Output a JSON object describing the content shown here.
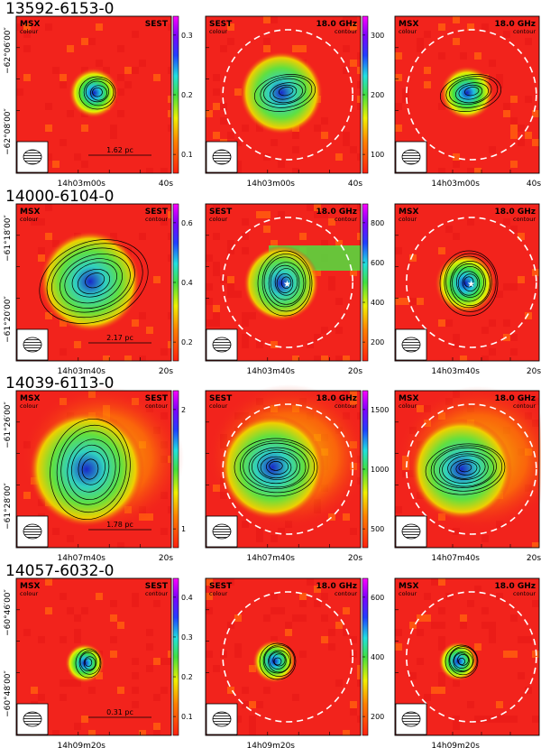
{
  "figure": {
    "rows": [
      {
        "source": "13592-6153-0",
        "dec_ticks": [
          "−62°06′00″",
          "−62°08′00″"
        ],
        "ra_ticks": [
          "14h03m00s",
          "40s"
        ],
        "panel_labels": [
          {
            "left": "MSX",
            "left_sub": "colour",
            "right": "SEST",
            "right_sub": ""
          },
          {
            "left": "SEST",
            "left_sub": "colour",
            "right": "18.0 GHz",
            "right_sub": "contour"
          },
          {
            "left": "MSX",
            "left_sub": "colour",
            "right": "18.0 GHz",
            "right_sub": "contour"
          }
        ],
        "scale_bar": "1.62 pc",
        "colorbar1": [
          "0.3",
          "0.2",
          "0.1"
        ],
        "colorbar2": [
          "300",
          "200",
          "100"
        ]
      },
      {
        "source": "14000-6104-0",
        "dec_ticks": [
          "−61°18′00″",
          "−61°20′00″"
        ],
        "ra_ticks": [
          "14h03m40s",
          "20s"
        ],
        "panel_labels": [
          {
            "left": "MSX",
            "left_sub": "colour",
            "right": "SEST",
            "right_sub": "contour"
          },
          {
            "left": "SEST",
            "left_sub": "colour",
            "right": "18.0 GHz",
            "right_sub": "contour"
          },
          {
            "left": "MSX",
            "left_sub": "colour",
            "right": "18.0 GHz",
            "right_sub": "contour"
          }
        ],
        "scale_bar": "2.17 pc",
        "colorbar1": [
          "0.6",
          "0.4",
          "0.2"
        ],
        "colorbar2": [
          "800",
          "600",
          "400",
          "200"
        ]
      },
      {
        "source": "14039-6113-0",
        "dec_ticks": [
          "−61°26′00″",
          "−61°28′00″"
        ],
        "ra_ticks": [
          "14h07m40s",
          "20s"
        ],
        "panel_labels": [
          {
            "left": "MSX",
            "left_sub": "colour",
            "right": "SEST",
            "right_sub": "contour"
          },
          {
            "left": "SEST",
            "left_sub": "colour",
            "right": "18.0 GHz",
            "right_sub": "contour"
          },
          {
            "left": "MSX",
            "left_sub": "colour",
            "right": "18.0 GHz",
            "right_sub": "contour"
          }
        ],
        "scale_bar": "1.78 pc",
        "colorbar1": [
          "2",
          "1"
        ],
        "colorbar2": [
          "1500",
          "1000",
          "500"
        ]
      },
      {
        "source": "14057-6032-0",
        "dec_ticks": [
          "−60°46′00″",
          "−60°48′00″"
        ],
        "ra_ticks": [
          "14h09m20s",
          ""
        ],
        "panel_labels": [
          {
            "left": "MSX",
            "left_sub": "colour",
            "right": "SEST",
            "right_sub": "contour"
          },
          {
            "left": "SEST",
            "left_sub": "colour",
            "right": "18.0 GHz",
            "right_sub": "contour"
          },
          {
            "left": "MSX",
            "left_sub": "colour",
            "right": "18.0 GHz",
            "right_sub": "contour"
          }
        ],
        "scale_bar": "0.31 pc",
        "colorbar1": [
          "0.4",
          "0.3",
          "0.2",
          "0.1"
        ],
        "colorbar2": [
          "600",
          "400",
          "200"
        ]
      }
    ],
    "colors": {
      "background_map": "#f2231c",
      "beam_box": "#ffffff",
      "contour": "#000000",
      "primary_beam": "#ffffff"
    }
  }
}
